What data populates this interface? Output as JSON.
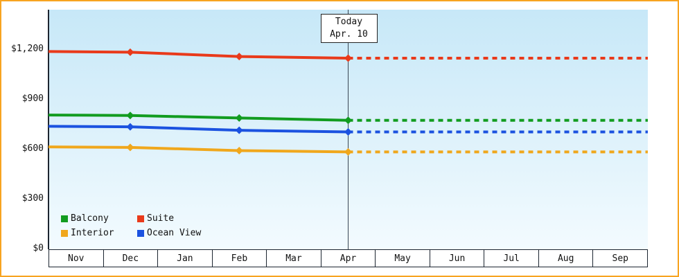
{
  "window": {
    "border_color": "#f7a420",
    "background": "#ffffff",
    "plot_bg_top": "#c7e8f8",
    "plot_bg_bottom": "#f3fbff"
  },
  "chart_data": {
    "type": "line",
    "title": "",
    "xlabel": "",
    "ylabel": "",
    "x_months": [
      "Nov",
      "Dec",
      "Jan",
      "Feb",
      "Mar",
      "Apr",
      "May",
      "Jun",
      "Jul",
      "Aug",
      "Sep"
    ],
    "y_ticks": [
      {
        "label": "$0",
        "value": 0
      },
      {
        "label": "$300",
        "value": 300
      },
      {
        "label": "$600",
        "value": 600
      },
      {
        "label": "$900",
        "value": 900
      },
      {
        "label": "$1,200",
        "value": 1200
      }
    ],
    "ylim": [
      0,
      1450
    ],
    "grid": false,
    "today": {
      "line1": "Today",
      "line2": "Apr. 10",
      "month": "Apr"
    },
    "series": [
      {
        "name": "Interior",
        "color": "#f0a71c",
        "solid_points": [
          {
            "month": "start",
            "value": 616
          },
          {
            "month": "Dec",
            "value": 613
          },
          {
            "month": "Feb",
            "value": 594
          },
          {
            "month": "Apr",
            "value": 586
          }
        ],
        "forecast_value": 586,
        "markers": [
          "Dec",
          "Feb",
          "Apr"
        ]
      },
      {
        "name": "Ocean View",
        "color": "#1b52e0",
        "solid_points": [
          {
            "month": "start",
            "value": 740
          },
          {
            "month": "Dec",
            "value": 737
          },
          {
            "month": "Feb",
            "value": 716
          },
          {
            "month": "Apr",
            "value": 706
          }
        ],
        "forecast_value": 706,
        "markers": [
          "Dec",
          "Feb",
          "Apr"
        ]
      },
      {
        "name": "Balcony",
        "color": "#129c20",
        "solid_points": [
          {
            "month": "start",
            "value": 808
          },
          {
            "month": "Dec",
            "value": 805
          },
          {
            "month": "Feb",
            "value": 790
          },
          {
            "month": "Apr",
            "value": 776
          }
        ],
        "forecast_value": 776,
        "markers": [
          "Dec",
          "Feb",
          "Apr"
        ]
      },
      {
        "name": "Suite",
        "color": "#e93a1b",
        "solid_points": [
          {
            "month": "start",
            "value": 1190
          },
          {
            "month": "Dec",
            "value": 1186
          },
          {
            "month": "Feb",
            "value": 1160
          },
          {
            "month": "Apr",
            "value": 1150
          }
        ],
        "forecast_value": 1150,
        "markers": [
          "Dec",
          "Feb",
          "Apr"
        ]
      }
    ],
    "legend": {
      "position": "bottom-left-inside",
      "items": [
        {
          "label": "Balcony",
          "color": "#129c20"
        },
        {
          "label": "Suite",
          "color": "#e93a1b"
        },
        {
          "label": "Interior",
          "color": "#f0a71c"
        },
        {
          "label": "Ocean View",
          "color": "#1b52e0"
        }
      ]
    }
  }
}
